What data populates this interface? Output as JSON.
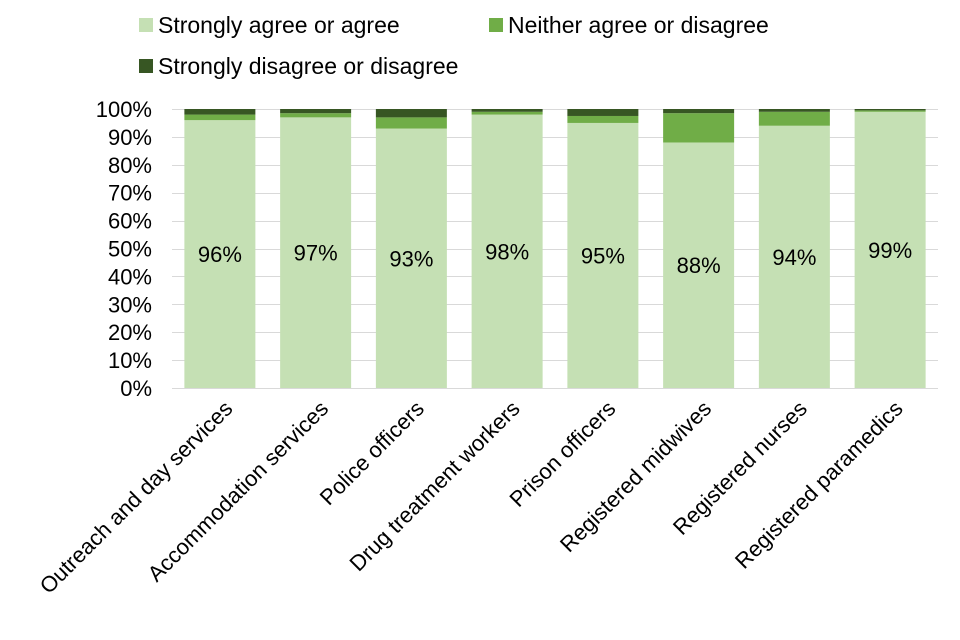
{
  "chart_data": {
    "type": "bar",
    "stacked": true,
    "orientation": "vertical",
    "categories": [
      "Outreach and day services",
      "Accommodation services",
      "Police officers",
      "Drug treatment workers",
      "Prison officers",
      "Registered midwives",
      "Registered nurses",
      "Registered paramedics"
    ],
    "series": [
      {
        "name": "Strongly agree or agree",
        "color": "#c5e0b4",
        "values": [
          96,
          97,
          93,
          98,
          95,
          88,
          94,
          99
        ],
        "data_labels": [
          "96%",
          "97%",
          "93%",
          "98%",
          "95%",
          "88%",
          "94%",
          "99%"
        ]
      },
      {
        "name": "Neither agree or disagree",
        "color": "#70ad47",
        "values": [
          2,
          1.5,
          4,
          1,
          2.5,
          10.5,
          5,
          0.5
        ]
      },
      {
        "name": "Strongly disagree or disagree",
        "color": "#375623",
        "values": [
          2,
          1.5,
          3,
          1,
          2.5,
          1.5,
          1,
          0.5
        ]
      }
    ],
    "ylim": [
      0,
      100
    ],
    "yticks": [
      0,
      10,
      20,
      30,
      40,
      50,
      60,
      70,
      80,
      90,
      100
    ],
    "ytick_labels": [
      "0%",
      "10%",
      "20%",
      "30%",
      "40%",
      "50%",
      "60%",
      "70%",
      "80%",
      "90%",
      "100%"
    ],
    "grid": true,
    "legend_position": "top"
  }
}
